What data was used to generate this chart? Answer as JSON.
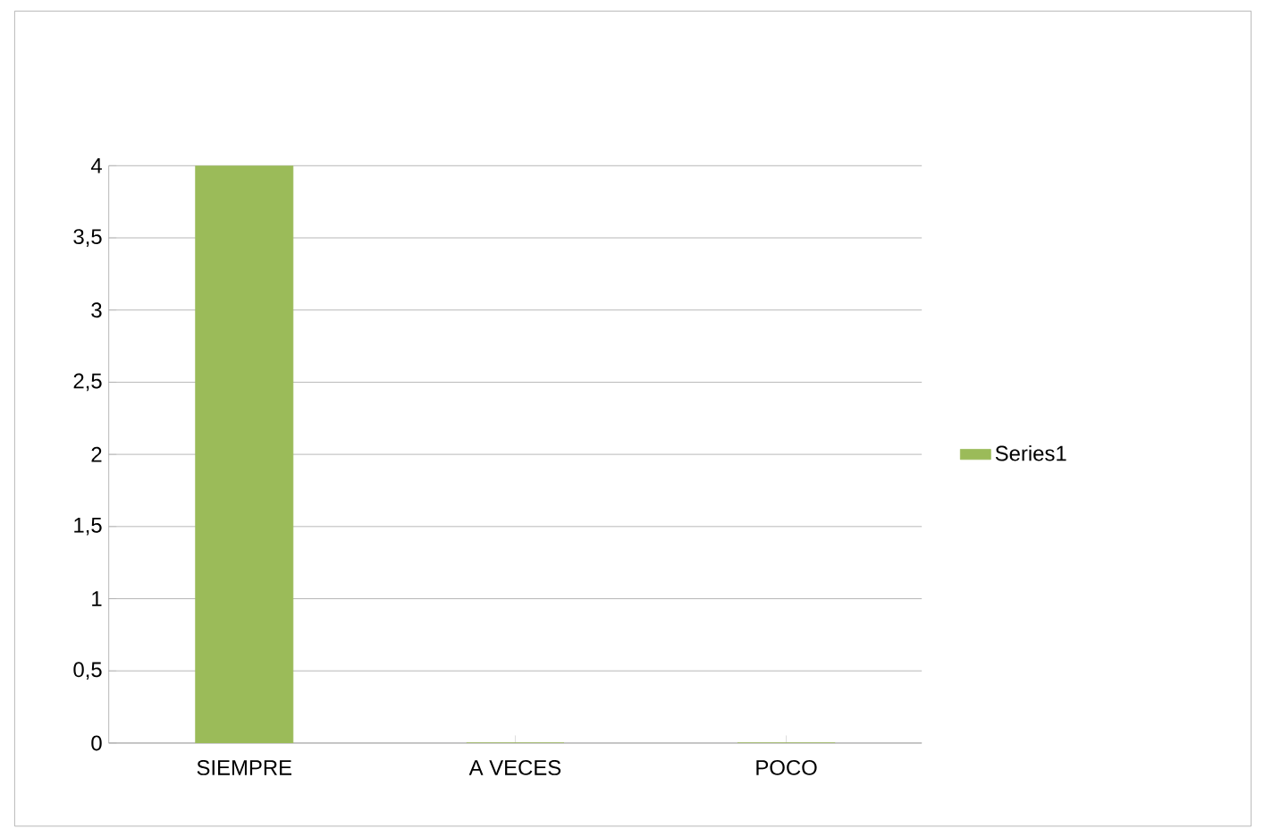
{
  "chart_data": {
    "type": "bar",
    "categories": [
      "SIEMPRE",
      "A VECES",
      "POCO"
    ],
    "series": [
      {
        "name": "Series1",
        "color": "#9bbb59",
        "values": [
          4,
          0,
          0
        ]
      }
    ],
    "ylim": [
      0,
      4
    ],
    "yticks": [
      0,
      {
        "value": 0.5,
        "label": "0,5"
      },
      1,
      {
        "value": 1.5,
        "label": "1,5"
      },
      2,
      {
        "value": 2.5,
        "label": "2,5"
      },
      3,
      {
        "value": 3.5,
        "label": "3,5"
      },
      4
    ],
    "grid": "y",
    "legend": "right"
  }
}
